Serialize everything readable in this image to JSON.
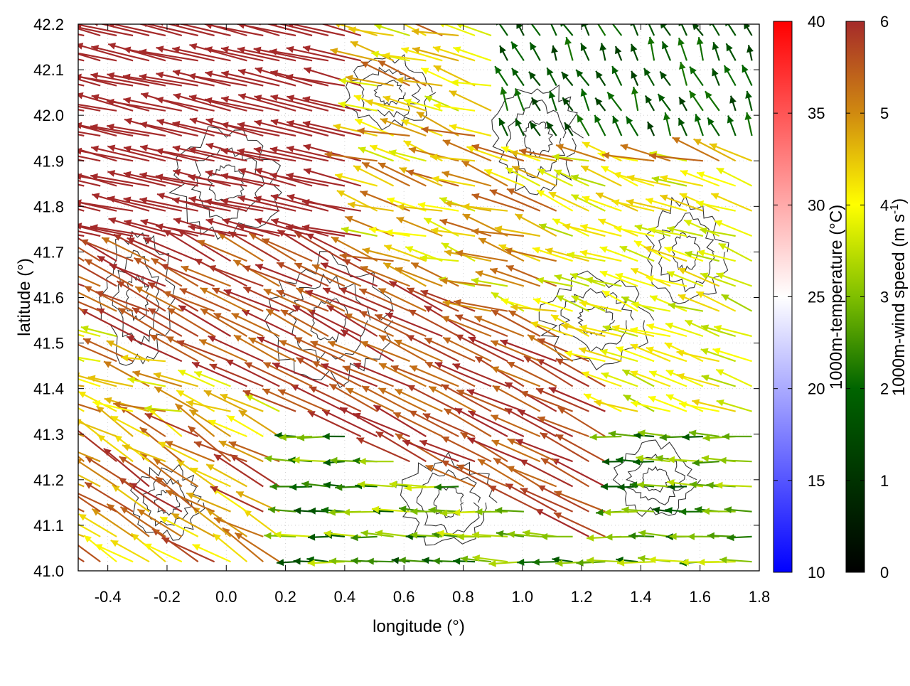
{
  "chart_data": {
    "type": "vector-field",
    "title": "",
    "xlabel": "longitude (°)",
    "ylabel": "latitude (°)",
    "xlim": [
      -0.5,
      1.8
    ],
    "ylim": [
      41.0,
      42.2
    ],
    "xticks": [
      -0.4,
      -0.2,
      0.0,
      0.2,
      0.4,
      0.6,
      0.8,
      1.0,
      1.2,
      1.4,
      1.6,
      1.8
    ],
    "xtick_labels": [
      "-0.4",
      "-0.2",
      "0.0",
      "0.2",
      "0.4",
      "0.6",
      "0.8",
      "1.0",
      "1.2",
      "1.4",
      "1.6",
      "1.8"
    ],
    "yticks": [
      41.0,
      41.1,
      41.2,
      41.3,
      41.4,
      41.5,
      41.6,
      41.7,
      41.8,
      41.9,
      42.0,
      42.1,
      42.2
    ],
    "ytick_labels": [
      "41.0",
      "41.1",
      "41.2",
      "41.3",
      "41.4",
      "41.5",
      "41.6",
      "41.7",
      "41.8",
      "41.9",
      "42.0",
      "42.1",
      "42.2"
    ],
    "grid": true,
    "colorbars": [
      {
        "label": "1000m-temperature (°C)",
        "range": [
          10,
          40
        ],
        "ticks": [
          10,
          15,
          20,
          25,
          30,
          35,
          40
        ],
        "tick_labels": [
          "10",
          "15",
          "20",
          "25",
          "30",
          "35",
          "40"
        ],
        "palette": [
          "#0000ff",
          "#ffffff",
          "#ff0000"
        ]
      },
      {
        "label_main": "1000m-wind speed (m s",
        "label_sup": "-1",
        "label_end": ")",
        "range": [
          0,
          6
        ],
        "ticks": [
          0,
          1,
          2,
          3,
          4,
          5,
          6
        ],
        "tick_labels": [
          "0",
          "1",
          "2",
          "3",
          "4",
          "5",
          "6"
        ],
        "palette": [
          "#000000",
          "#006400",
          "#7fbf00",
          "#ffff00",
          "#d08a10",
          "#a52a2a"
        ]
      }
    ],
    "wind_regions": [
      {
        "region": "north-west",
        "lon": [
          -0.5,
          0.5
        ],
        "lat": [
          41.7,
          42.2
        ],
        "speed": 6,
        "direction": "toward west-north-west"
      },
      {
        "region": "central diagonal band",
        "lon": [
          -0.5,
          1.3
        ],
        "lat": [
          41.3,
          41.7
        ],
        "speed": 6,
        "direction": "toward north-west"
      },
      {
        "region": "east",
        "lon": [
          1.2,
          1.8
        ],
        "lat": [
          41.3,
          41.9
        ],
        "speed": 4,
        "direction": "toward north-west"
      },
      {
        "region": "north-east",
        "lon": [
          1.0,
          1.8
        ],
        "lat": [
          41.9,
          42.2
        ],
        "speed": 1.5,
        "direction": "toward north"
      },
      {
        "region": "south",
        "lon": [
          0.2,
          1.8
        ],
        "lat": [
          41.0,
          41.3
        ],
        "speed": 2.5,
        "direction": "toward west"
      },
      {
        "region": "south-west",
        "lon": [
          -0.5,
          0.2
        ],
        "lat": [
          41.0,
          41.3
        ],
        "speed": 5,
        "direction": "toward north-west"
      }
    ]
  }
}
